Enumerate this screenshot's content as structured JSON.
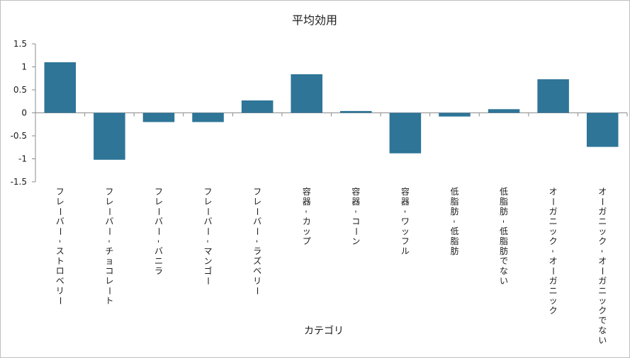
{
  "chart_data": {
    "type": "bar",
    "title": "平均効用",
    "xlabel": "カテゴリ",
    "ylabel": "",
    "ylim": [
      -1.5,
      1.5
    ],
    "yticks": [
      "1.5",
      "1",
      "0.5",
      "0",
      "-0.5",
      "-1",
      "-1.5"
    ],
    "ytick_values": [
      1.5,
      1,
      0.5,
      0,
      -0.5,
      -1,
      -1.5
    ],
    "grid": false,
    "bar_color": "#2e7598",
    "categories": [
      "フレーバー-ストロベリー",
      "フレーバー-チョコレート",
      "フレーバー-バニラ",
      "フレーバー-マンゴー",
      "フレーバー-ラズベリー",
      "容器-カップ",
      "容器-コーン",
      "容器-ワッフル",
      "低脂肪-低脂肪",
      "低脂肪-低脂肪でない",
      "オーガニック-オーガニック",
      "オーガニック-オーガニックでない"
    ],
    "values": [
      1.1,
      -1.02,
      -0.2,
      -0.2,
      0.27,
      0.84,
      0.04,
      -0.88,
      -0.08,
      0.08,
      0.73,
      -0.74
    ]
  }
}
